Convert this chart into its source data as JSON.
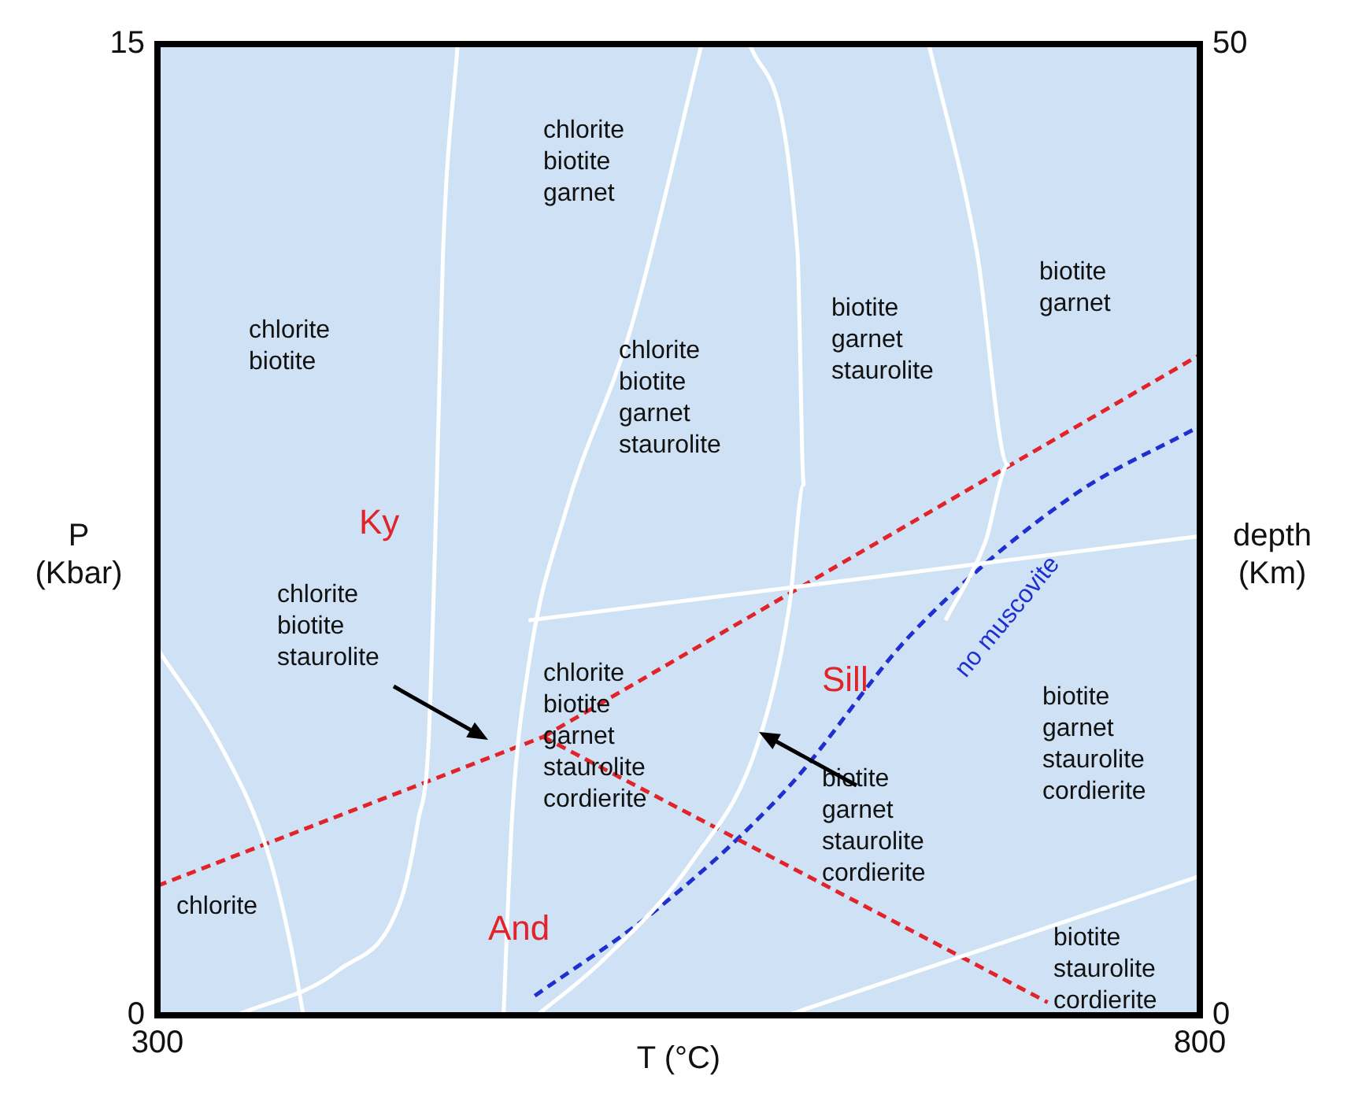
{
  "chart_data": {
    "type": "line",
    "xlabel": "T (°C)",
    "ylabel": "P\n(Kbar)",
    "y2label": "depth\n(Km)",
    "xlim": [
      300,
      800
    ],
    "xticks": [
      300,
      800
    ],
    "ylim": [
      0,
      15
    ],
    "yticks": [
      0,
      15
    ],
    "y2lim": [
      0,
      50
    ],
    "y2ticks": [
      0,
      50
    ],
    "legend": false,
    "marker": "none",
    "series": [
      {
        "color": "#ffffff",
        "line_style": "solid",
        "x": [
          300,
          330,
          353,
          364,
          370
        ],
        "values": [
          5.66,
          4.18,
          2.51,
          1.07,
          0
        ]
      },
      {
        "color": "#ffffff",
        "line_style": "solid",
        "x": [
          338,
          387,
          417,
          425,
          430,
          434,
          437,
          444
        ],
        "values": [
          0,
          0.7,
          1.8,
          3.0,
          4.2,
          8.2,
          11.8,
          15
        ]
      },
      {
        "color": "#ffffff",
        "line_style": "solid",
        "x": [
          466,
          470,
          478,
          496,
          527,
          561
        ],
        "values": [
          0,
          3.0,
          5.4,
          7.8,
          10.6,
          15
        ]
      },
      {
        "color": "#ffffff",
        "line_style": "solid",
        "x": [
          482,
          512,
          557,
          588,
          603,
          610,
          607,
          584
        ],
        "values": [
          0,
          0.8,
          2.4,
          4.2,
          6.3,
          8.2,
          11.8,
          15
        ]
      },
      {
        "color": "#ffffff",
        "line_style": "solid",
        "x": [
          678,
          697,
          708,
          693,
          670
        ],
        "values": [
          6.1,
          7.3,
          8.5,
          11.8,
          15
        ]
      },
      {
        "color": "#ffffff",
        "line_style": "solid",
        "x": [
          478,
          800
        ],
        "values": [
          6.1,
          7.4
        ]
      },
      {
        "color": "#ffffff",
        "line_style": "solid",
        "x": [
          602,
          800
        ],
        "values": [
          0,
          2.15
        ]
      },
      {
        "color": "#e0242a",
        "line_style": "dashed",
        "x": [
          300,
          485
        ],
        "values": [
          2.0,
          4.3
        ]
      },
      {
        "color": "#e0242a",
        "line_style": "dashed",
        "x": [
          485,
          800
        ],
        "values": [
          4.3,
          10.2
        ]
      },
      {
        "color": "#e0242a",
        "line_style": "dashed",
        "x": [
          485,
          727
        ],
        "values": [
          4.3,
          0.2
        ]
      },
      {
        "color": "#1f2fd0",
        "line_style": "dashed",
        "x": [
          481,
          542,
          602,
          662,
          738,
          800
        ],
        "values": [
          0.3,
          1.7,
          3.5,
          5.9,
          8.0,
          9.1
        ]
      }
    ],
    "annotations": [
      "chlorite\nbiotite\ngarnet",
      "chlorite\nbiotite",
      "chlorite\nbiotite\ngarnet\nstaurolite",
      "biotite\ngarnet\nstaurolite",
      "biotite\ngarnet",
      "Ky",
      "chlorite\nbiotite\nstaurolite",
      "chlorite\nbiotite\ngarnet\nstaurolite\ncordierite",
      "Sill",
      "no muscovite",
      "biotite\ngarnet\nstaurolite\ncordierite",
      "biotite\ngarnet\nstaurolite\ncordierite",
      "chlorite",
      "And",
      "biotite\nstaurolite\ncordierite"
    ]
  }
}
